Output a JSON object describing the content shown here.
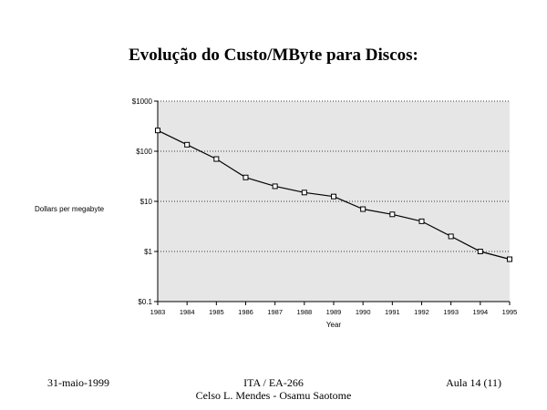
{
  "slide": {
    "title": "Evolução do Custo/MByte para Discos:"
  },
  "chart_data": {
    "type": "line",
    "title": "",
    "xlabel": "Year",
    "ylabel": "Dollars per megabyte",
    "y_scale": "log",
    "ylim": [
      0.1,
      1000
    ],
    "xlim": [
      1983,
      1995
    ],
    "grid": {
      "horizontal": true,
      "vertical": false,
      "style": "dotted"
    },
    "plot_background": "#e6e6e6",
    "line_color": "#000000",
    "marker": "square",
    "x_ticks": [
      "1983",
      "1984",
      "1985",
      "1986",
      "1987",
      "1988",
      "1989",
      "1990",
      "1991",
      "1992",
      "1993",
      "1994",
      "1995"
    ],
    "y_ticks": [
      {
        "value": 1000,
        "label": "$1000"
      },
      {
        "value": 100,
        "label": "$100"
      },
      {
        "value": 10,
        "label": "$10"
      },
      {
        "value": 1,
        "label": "$1"
      },
      {
        "value": 0.1,
        "label": "$0.1"
      }
    ],
    "series": [
      {
        "x": [
          1983,
          1984,
          1985,
          1986,
          1987,
          1988,
          1989,
          1990,
          1991,
          1992,
          1993,
          1994,
          1995
        ],
        "y": [
          260,
          135,
          70,
          30,
          20,
          15,
          12.5,
          7,
          5.5,
          4,
          2,
          1,
          0.7
        ]
      }
    ]
  },
  "footer": {
    "date": "31-maio-1999",
    "course": "ITA / EA-266",
    "authors": "Celso L. Mendes - Osamu Saotome",
    "lesson": "Aula 14 (11)"
  }
}
